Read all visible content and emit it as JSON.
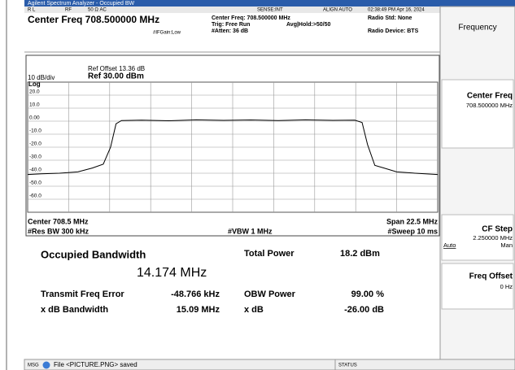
{
  "window": {
    "title": "Agilent Spectrum Analyzer - Occupied BW"
  },
  "status_row": {
    "rl": "R L",
    "rf": "RF",
    "input": "50 Ω AC",
    "sense": "SENSE:INT",
    "align": "ALIGN AUTO",
    "time": "02:38:49 PM Apr 16, 2024"
  },
  "header": {
    "center_freq": "Center Freq 708.500000 MHz",
    "if_gain": "#IFGain:Low",
    "center_info": "Center Freq: 708.500000 MHz",
    "trig": "Trig: Free Run",
    "avg": "Avg|Hold:>50/50",
    "atten": "#Atten: 36 dB",
    "radio_std": "Radio Std: None",
    "radio_device": "Radio Device: BTS"
  },
  "softkeys": {
    "menu": "Frequency",
    "center_freq": {
      "label": "Center Freq",
      "value": "708.500000 MHz"
    },
    "cf_step": {
      "label": "CF Step",
      "value": "2.250000 MHz",
      "auto": "Auto",
      "man": "Man"
    },
    "freq_offset": {
      "label": "Freq Offset",
      "value": "0 Hz"
    }
  },
  "chart_data": {
    "type": "line",
    "ref_offset": "Ref Offset 13.36 dB",
    "scale": "10 dB/div",
    "ref_level": "Ref 30.00 dBm",
    "scale_type": "Log",
    "center_label": "Center  708.5 MHz",
    "rbw_label": "#Res BW  300 kHz",
    "vbw_label": "#VBW  1 MHz",
    "span_label": "Span 22.5 MHz",
    "sweep_label": "#Sweep  10 ms",
    "xlim": [
      697.25,
      719.75
    ],
    "ylim": [
      -70,
      30
    ],
    "yticks": [
      {
        "value": 20,
        "label": "20.0"
      },
      {
        "value": 10,
        "label": "10.0"
      },
      {
        "value": 0,
        "label": "0.00"
      },
      {
        "value": -10,
        "label": "-10.0"
      },
      {
        "value": -20,
        "label": "-20.0"
      },
      {
        "value": -30,
        "label": "-30.0"
      },
      {
        "value": -40,
        "label": "-40.0"
      },
      {
        "value": -50,
        "label": "-50.0"
      },
      {
        "value": -60,
        "label": "-60.0"
      }
    ],
    "grid": true,
    "series": [
      {
        "color": "#000000",
        "x": [
          697.25,
          698,
          699,
          700,
          700.8,
          701.4,
          701.8,
          702.1,
          702.4,
          703.5,
          705,
          706.5,
          708,
          709.5,
          711,
          712.5,
          714,
          715.2,
          715.6,
          715.9,
          716.3,
          716.8,
          717.5,
          718.5,
          719.75
        ],
        "values": [
          -41,
          -40.5,
          -40,
          -39,
          -36,
          -33,
          -20,
          -2,
          0.5,
          0.8,
          0.3,
          1,
          0.6,
          0.9,
          0.5,
          1,
          0.6,
          0.8,
          -1,
          -18,
          -34,
          -36,
          -39,
          -40,
          -41
        ]
      }
    ]
  },
  "results": {
    "obw_label": "Occupied Bandwidth",
    "obw_value": "14.174 MHz",
    "total_power_label": "Total Power",
    "total_power_value": "18.2 dBm",
    "freq_error_label": "Transmit Freq Error",
    "freq_error_value": "-48.766 kHz",
    "obw_power_label": "OBW Power",
    "obw_power_value": "99.00 %",
    "xdb_bw_label": "x dB Bandwidth",
    "xdb_bw_value": "15.09 MHz",
    "xdb_label": "x dB",
    "xdb_value": "-26.00 dB"
  },
  "status_bar": {
    "msg": "MSG",
    "message": "File <PICTURE.PNG> saved",
    "status": "STATUS"
  }
}
